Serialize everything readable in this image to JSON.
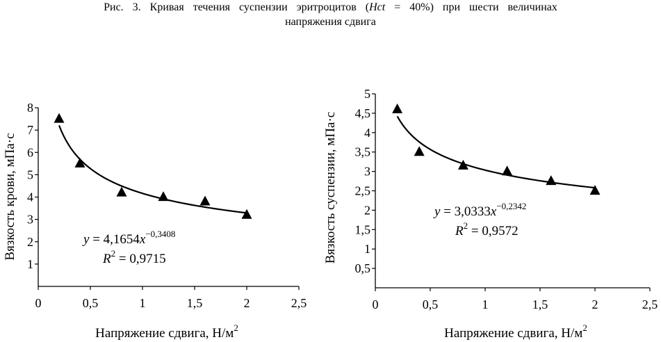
{
  "caption": {
    "prefix": "Рис.  3.  Кривая  течения  суспензии  эритроцитов  (",
    "hct_symbol": "Hct",
    "middle": " = 40%)  при  шести  величинах",
    "line2": "напряжения сдвига"
  },
  "chart_data": [
    {
      "type": "scatter",
      "xlabel": "Напряжение сдвига, Н/м",
      "xlabel_sup": "2",
      "ylabel": "Вязкость крови, мПа·с",
      "xlim": [
        0,
        2.5
      ],
      "ylim": [
        0,
        8
      ],
      "x_ticks": [
        "0",
        "0,5",
        "1",
        "1,5",
        "2",
        "2,5"
      ],
      "y_ticks": [
        "1",
        "2",
        "3",
        "4",
        "5",
        "6",
        "7",
        "8"
      ],
      "grid": false,
      "legend": "none",
      "series": [
        {
          "x": [
            0.2,
            0.4,
            0.8,
            1.2,
            1.6,
            2.0
          ],
          "y": [
            7.5,
            5.5,
            4.2,
            4.0,
            3.8,
            3.2
          ],
          "marker": "triangle"
        }
      ],
      "trendline": {
        "type": "power",
        "a": 4.1654,
        "b": -0.3408
      },
      "equation": {
        "prefix": "y = 4,1654x",
        "exponent": "−0,3408",
        "r2_prefix": "R",
        "r2_exp": "2",
        "r2_value": " = 0,9715"
      }
    },
    {
      "type": "scatter",
      "xlabel": "Напряжение сдвига, Н/м",
      "xlabel_sup": "2",
      "ylabel": "Вязкость суспензии, мПа·с",
      "xlim": [
        0,
        2.5
      ],
      "ylim": [
        0,
        5
      ],
      "x_ticks": [
        "0",
        "0,5",
        "1",
        "1,5",
        "2",
        "2,5"
      ],
      "y_ticks": [
        "0,5",
        "1",
        "1,5",
        "2",
        "2,5",
        "3",
        "3,5",
        "4",
        "4,5",
        "5"
      ],
      "grid": false,
      "legend": "none",
      "series": [
        {
          "x": [
            0.2,
            0.4,
            0.8,
            1.2,
            1.6,
            2.0
          ],
          "y": [
            4.6,
            3.5,
            3.15,
            3.0,
            2.75,
            2.5
          ],
          "marker": "triangle"
        }
      ],
      "trendline": {
        "type": "power",
        "a": 3.0333,
        "b": -0.2342
      },
      "equation": {
        "prefix": "y = 3,0333x",
        "exponent": "−0,2342",
        "r2_prefix": "R",
        "r2_exp": "2",
        "r2_value": " = 0,9572"
      }
    }
  ]
}
